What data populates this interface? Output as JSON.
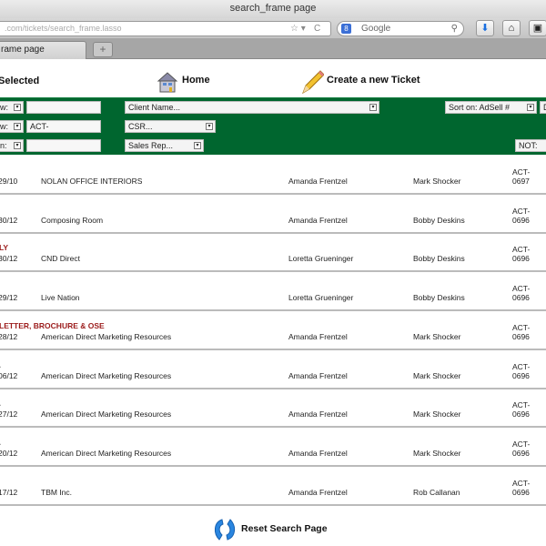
{
  "browser": {
    "title": "search_frame page",
    "url": ".com/tickets/search_frame.lasso",
    "search_placeholder": "Google",
    "tab_label": "rame page",
    "new_tab": "+"
  },
  "header": {
    "selected_label": "Selected",
    "home_label": "Home",
    "create_label": "Create a new Ticket"
  },
  "filters": {
    "row1_select": "w:",
    "row1_input": "",
    "client": "Client Name...",
    "sort": "Sort on: AdSell #",
    "sort_extra": "D",
    "row2_select": "w:",
    "row2_input": "ACT-",
    "csr": "CSR...",
    "row3_select": "n:",
    "row3_input": "",
    "sales_rep": "Sales Rep...",
    "not": "NOT:"
  },
  "rows": [
    {
      "category": "",
      "date": "29/10",
      "client": "NOLAN OFFICE INTERIORS",
      "csr": "Amanda Frentzel",
      "rep": "Mark Shocker",
      "ticket": "ACT-0697"
    },
    {
      "category": "",
      "date": "30/12",
      "client": "Composing Room",
      "csr": "Amanda Frentzel",
      "rep": "Bobby Deskins",
      "ticket": "ACT-0696"
    },
    {
      "category": "LY",
      "date": "30/12",
      "client": "CND Direct",
      "csr": "Loretta Grueninger",
      "rep": "Bobby Deskins",
      "ticket": "ACT-0696"
    },
    {
      "category": "",
      "date": "29/12",
      "client": "Live Nation",
      "csr": "Loretta Grueninger",
      "rep": "Bobby Deskins",
      "ticket": "ACT-0696"
    },
    {
      "category": "LETTER, BROCHURE & OSE",
      "date": "28/12",
      "client": "American Direct Marketing Resources",
      "csr": "Amanda Frentzel",
      "rep": "Mark Shocker",
      "ticket": "ACT-0696"
    },
    {
      "category": ".",
      "date": "06/12",
      "client": "American Direct Marketing Resources",
      "csr": "Amanda Frentzel",
      "rep": "Mark Shocker",
      "ticket": "ACT-0696"
    },
    {
      "category": ".",
      "date": "27/12",
      "client": "American Direct Marketing Resources",
      "csr": "Amanda Frentzel",
      "rep": "Mark Shocker",
      "ticket": "ACT-0696"
    },
    {
      "category": ".",
      "date": "20/12",
      "client": "American Direct Marketing Resources",
      "csr": "Amanda Frentzel",
      "rep": "Mark Shocker",
      "ticket": "ACT-0696"
    },
    {
      "category": "",
      "date": "17/12",
      "client": "TBM Inc.",
      "csr": "Amanda Frentzel",
      "rep": "Rob Callanan",
      "ticket": "ACT-0696"
    }
  ],
  "footer": {
    "reset_label": "Reset Search Page"
  },
  "colors": {
    "filter_band": "#00662f",
    "category_text": "#9b1b1b"
  }
}
